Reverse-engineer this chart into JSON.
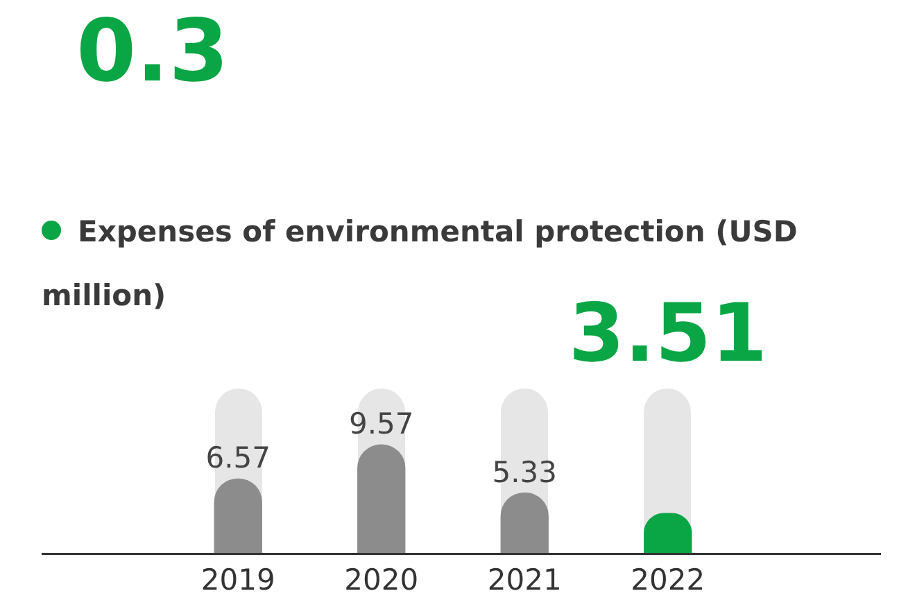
{
  "chart_data": {
    "type": "bar",
    "title": "Expenses of environmental protection (USD million)",
    "categories": [
      "2019",
      "2020",
      "2021",
      "2022"
    ],
    "values": [
      6.57,
      9.57,
      5.33,
      3.51
    ],
    "colors": [
      "#8c8c8c",
      "#8c8c8c",
      "#8c8c8c",
      "#0aa544"
    ],
    "data_labels": true,
    "grid": false,
    "legend": false,
    "annotations": [
      "0.3"
    ]
  }
}
